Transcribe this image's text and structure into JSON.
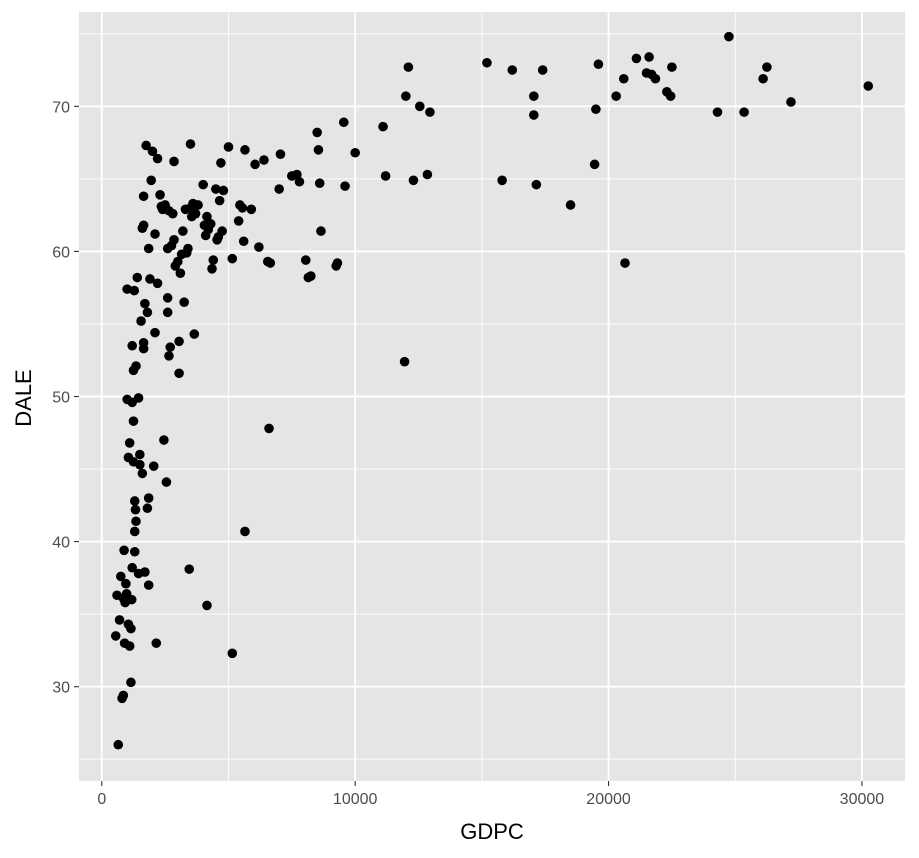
{
  "chart_data": {
    "type": "scatter",
    "xlabel": "GDPC",
    "ylabel": "DALE",
    "xlim": [
      -900,
      31700
    ],
    "ylim": [
      23.5,
      76.5
    ],
    "x_ticks": [
      0,
      10000,
      20000,
      30000
    ],
    "x_tick_labels": [
      "0",
      "10000",
      "20000",
      "30000"
    ],
    "y_ticks": [
      30,
      40,
      50,
      60,
      70
    ],
    "y_tick_labels": [
      "30",
      "40",
      "50",
      "60",
      "70"
    ],
    "grid": true,
    "colors": {
      "panel": "#e5e5e5",
      "grid": "#ffffff",
      "point": "#000000"
    },
    "points": [
      [
        550,
        33.5
      ],
      [
        600,
        36.3
      ],
      [
        650,
        26.0
      ],
      [
        700,
        34.6
      ],
      [
        750,
        37.6
      ],
      [
        800,
        29.2
      ],
      [
        850,
        29.4
      ],
      [
        850,
        36.1
      ],
      [
        880,
        39.4
      ],
      [
        900,
        33.0
      ],
      [
        920,
        35.8
      ],
      [
        950,
        37.1
      ],
      [
        980,
        36.4
      ],
      [
        1000,
        57.4
      ],
      [
        1000,
        49.8
      ],
      [
        1050,
        45.8
      ],
      [
        1050,
        34.3
      ],
      [
        1100,
        46.8
      ],
      [
        1100,
        32.8
      ],
      [
        1150,
        30.3
      ],
      [
        1150,
        34.0
      ],
      [
        1180,
        36.0
      ],
      [
        1200,
        49.6
      ],
      [
        1200,
        53.5
      ],
      [
        1200,
        38.2
      ],
      [
        1250,
        45.5
      ],
      [
        1250,
        51.8
      ],
      [
        1250,
        48.3
      ],
      [
        1280,
        57.3
      ],
      [
        1300,
        40.7
      ],
      [
        1300,
        39.3
      ],
      [
        1300,
        42.8
      ],
      [
        1330,
        42.2
      ],
      [
        1350,
        41.4
      ],
      [
        1350,
        52.1
      ],
      [
        1400,
        58.2
      ],
      [
        1450,
        49.9
      ],
      [
        1450,
        37.8
      ],
      [
        1500,
        46.0
      ],
      [
        1500,
        45.3
      ],
      [
        1550,
        55.2
      ],
      [
        1600,
        61.6
      ],
      [
        1600,
        44.7
      ],
      [
        1650,
        61.8
      ],
      [
        1650,
        53.7
      ],
      [
        1650,
        53.3
      ],
      [
        1650,
        63.8
      ],
      [
        1700,
        56.4
      ],
      [
        1700,
        37.9
      ],
      [
        1750,
        67.3
      ],
      [
        1800,
        55.8
      ],
      [
        1800,
        42.3
      ],
      [
        1850,
        60.2
      ],
      [
        1850,
        43.0
      ],
      [
        1850,
        37.0
      ],
      [
        1900,
        58.1
      ],
      [
        1950,
        64.9
      ],
      [
        2000,
        66.9
      ],
      [
        2050,
        45.2
      ],
      [
        2100,
        54.4
      ],
      [
        2100,
        61.2
      ],
      [
        2150,
        33.0
      ],
      [
        2200,
        57.8
      ],
      [
        2200,
        66.4
      ],
      [
        2300,
        63.9
      ],
      [
        2350,
        63.1
      ],
      [
        2400,
        62.9
      ],
      [
        2450,
        47.0
      ],
      [
        2500,
        63.2
      ],
      [
        2550,
        44.1
      ],
      [
        2600,
        55.8
      ],
      [
        2600,
        60.2
      ],
      [
        2600,
        56.8
      ],
      [
        2650,
        62.8
      ],
      [
        2650,
        52.8
      ],
      [
        2700,
        53.4
      ],
      [
        2750,
        60.4
      ],
      [
        2800,
        62.6
      ],
      [
        2850,
        66.2
      ],
      [
        2850,
        60.8
      ],
      [
        2900,
        59.0
      ],
      [
        3000,
        59.3
      ],
      [
        3050,
        53.8
      ],
      [
        3050,
        51.6
      ],
      [
        3100,
        58.5
      ],
      [
        3150,
        59.8
      ],
      [
        3200,
        61.4
      ],
      [
        3250,
        56.5
      ],
      [
        3300,
        62.9
      ],
      [
        3350,
        59.9
      ],
      [
        3400,
        60.2
      ],
      [
        3450,
        38.1
      ],
      [
        3500,
        67.4
      ],
      [
        3500,
        63.0
      ],
      [
        3550,
        62.4
      ],
      [
        3600,
        63.3
      ],
      [
        3650,
        54.3
      ],
      [
        3700,
        62.6
      ],
      [
        3800,
        63.2
      ],
      [
        4000,
        64.6
      ],
      [
        4050,
        61.8
      ],
      [
        4100,
        61.1
      ],
      [
        4150,
        35.6
      ],
      [
        4150,
        62.4
      ],
      [
        4200,
        61.5
      ],
      [
        4300,
        61.9
      ],
      [
        4350,
        58.8
      ],
      [
        4400,
        59.4
      ],
      [
        4500,
        64.3
      ],
      [
        4550,
        60.8
      ],
      [
        4600,
        61.0
      ],
      [
        4650,
        63.5
      ],
      [
        4700,
        66.1
      ],
      [
        4750,
        61.4
      ],
      [
        4800,
        64.2
      ],
      [
        5000,
        67.2
      ],
      [
        5150,
        59.5
      ],
      [
        5150,
        32.3
      ],
      [
        5400,
        62.1
      ],
      [
        5450,
        63.2
      ],
      [
        5550,
        63.0
      ],
      [
        5600,
        60.7
      ],
      [
        5650,
        40.7
      ],
      [
        5650,
        67.0
      ],
      [
        5900,
        62.9
      ],
      [
        6050,
        66.0
      ],
      [
        6200,
        60.3
      ],
      [
        6400,
        66.3
      ],
      [
        6550,
        59.3
      ],
      [
        6600,
        47.8
      ],
      [
        6650,
        59.2
      ],
      [
        7000,
        64.3
      ],
      [
        7050,
        66.7
      ],
      [
        7500,
        65.2
      ],
      [
        7700,
        65.3
      ],
      [
        7800,
        64.8
      ],
      [
        8050,
        59.4
      ],
      [
        8150,
        58.2
      ],
      [
        8250,
        58.3
      ],
      [
        8500,
        68.2
      ],
      [
        8550,
        67.0
      ],
      [
        8600,
        64.7
      ],
      [
        8650,
        61.4
      ],
      [
        9250,
        59.0
      ],
      [
        9300,
        59.2
      ],
      [
        9550,
        68.9
      ],
      [
        9600,
        64.5
      ],
      [
        10000,
        66.8
      ],
      [
        11100,
        68.6
      ],
      [
        11200,
        65.2
      ],
      [
        11950,
        52.4
      ],
      [
        12000,
        70.7
      ],
      [
        12100,
        72.7
      ],
      [
        12300,
        64.9
      ],
      [
        12550,
        70.0
      ],
      [
        12850,
        65.3
      ],
      [
        12950,
        69.6
      ],
      [
        15200,
        73.0
      ],
      [
        15800,
        64.9
      ],
      [
        16200,
        72.5
      ],
      [
        17050,
        70.7
      ],
      [
        17050,
        69.4
      ],
      [
        17150,
        64.6
      ],
      [
        17400,
        72.5
      ],
      [
        18500,
        63.2
      ],
      [
        19450,
        66.0
      ],
      [
        19500,
        69.8
      ],
      [
        19600,
        72.9
      ],
      [
        20300,
        70.7
      ],
      [
        20600,
        71.9
      ],
      [
        20650,
        59.2
      ],
      [
        21100,
        73.3
      ],
      [
        21500,
        72.3
      ],
      [
        21600,
        73.4
      ],
      [
        21700,
        72.2
      ],
      [
        21850,
        71.9
      ],
      [
        22300,
        71.0
      ],
      [
        22450,
        70.7
      ],
      [
        22500,
        72.7
      ],
      [
        24300,
        69.6
      ],
      [
        24750,
        74.8
      ],
      [
        25350,
        69.6
      ],
      [
        26100,
        71.9
      ],
      [
        26250,
        72.7
      ],
      [
        27200,
        70.3
      ],
      [
        30250,
        71.4
      ]
    ]
  }
}
